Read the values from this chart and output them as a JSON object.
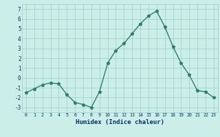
{
  "x": [
    0,
    1,
    2,
    3,
    4,
    5,
    6,
    7,
    8,
    9,
    10,
    11,
    12,
    13,
    14,
    15,
    16,
    17,
    18,
    19,
    20,
    21,
    22,
    23
  ],
  "y": [
    -1.5,
    -1.1,
    -0.7,
    -0.5,
    -0.6,
    -1.7,
    -2.5,
    -2.7,
    -3.0,
    -1.4,
    1.5,
    2.8,
    3.5,
    4.5,
    5.5,
    6.3,
    6.8,
    5.2,
    3.2,
    1.5,
    0.3,
    -1.3,
    -1.4,
    -2.0
  ],
  "xlabel": "Humidex (Indice chaleur)",
  "ylim": [
    -3.5,
    7.5
  ],
  "xlim": [
    -0.5,
    23.5
  ],
  "yticks": [
    -3,
    -2,
    -1,
    0,
    1,
    2,
    3,
    4,
    5,
    6,
    7
  ],
  "xticks": [
    0,
    1,
    2,
    3,
    4,
    5,
    6,
    7,
    8,
    9,
    10,
    11,
    12,
    13,
    14,
    15,
    16,
    17,
    18,
    19,
    20,
    21,
    22,
    23
  ],
  "line_color": "#2d7d6e",
  "marker_color": "#2d7d6e",
  "bg_color": "#cceee8",
  "grid_color": "#99cccc",
  "axis_bg": "#cceee8",
  "xlabel_color": "#003366",
  "text_color": "#003366"
}
